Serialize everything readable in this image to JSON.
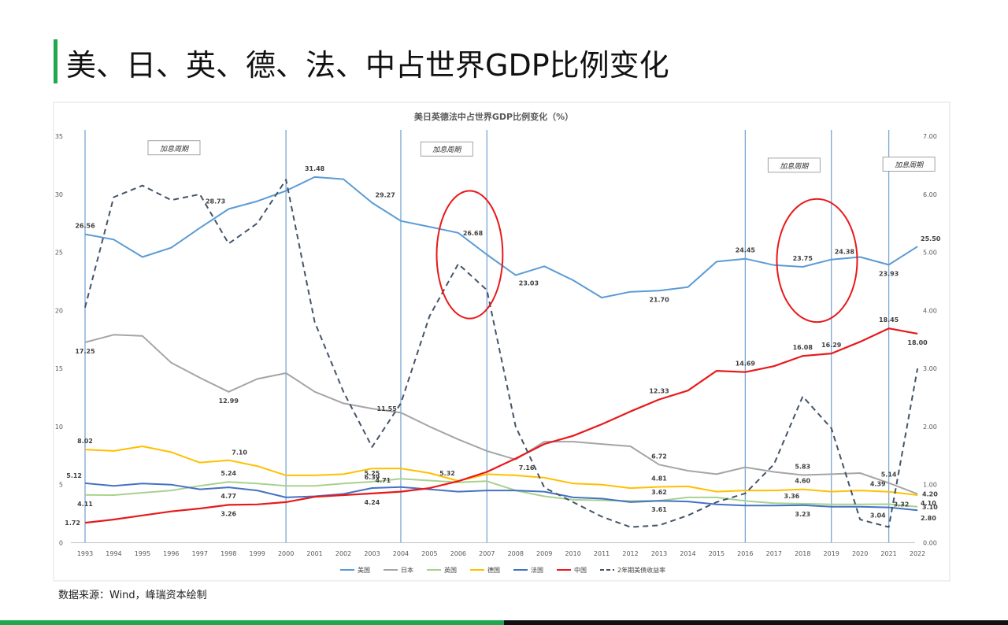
{
  "page": {
    "title": "美、日、英、德、法、中占世界GDP比例变化",
    "source": "数据来源：Wind，峰瑞资本绘制"
  },
  "colors": {
    "accent": "#1fa84f",
    "usa": "#5b9bd5",
    "japan": "#a5a5a5",
    "uk": "#a9d18e",
    "germany": "#ffc000",
    "france": "#4472c4",
    "china": "#e8191b",
    "yield": "#44546a",
    "cycle_line": "#7aa6d2",
    "circle": "#e8191b"
  },
  "chart_data": {
    "type": "line",
    "title": "美日英德法中占世界GDP比例变化（%）",
    "x": [
      1993,
      1994,
      1995,
      1996,
      1997,
      1998,
      1999,
      2000,
      2001,
      2002,
      2003,
      2004,
      2005,
      2006,
      2007,
      2008,
      2009,
      2010,
      2011,
      2012,
      2013,
      2014,
      2015,
      2016,
      2017,
      2018,
      2019,
      2020,
      2021,
      2022
    ],
    "y_left": {
      "min": 0,
      "max": 35,
      "ticks": [
        0,
        5,
        10,
        15,
        20,
        25,
        30,
        35
      ]
    },
    "y_right": {
      "min": 0,
      "max": 7,
      "ticks": [
        "0.00",
        "1.00",
        "2.00",
        "3.00",
        "4.00",
        "5.00",
        "6.00",
        "7.00"
      ]
    },
    "series": [
      {
        "name": "美国",
        "key": "usa",
        "axis": "left",
        "values": [
          26.56,
          26.1,
          24.6,
          25.4,
          27.1,
          28.73,
          29.4,
          30.3,
          31.48,
          31.3,
          29.27,
          27.7,
          27.2,
          26.68,
          24.8,
          23.03,
          23.8,
          22.6,
          21.1,
          21.6,
          21.7,
          22.0,
          24.2,
          24.45,
          23.9,
          23.75,
          24.38,
          24.6,
          23.93,
          25.5
        ]
      },
      {
        "name": "日本",
        "key": "japan",
        "axis": "left",
        "values": [
          17.25,
          17.9,
          17.8,
          15.5,
          14.2,
          12.99,
          14.1,
          14.6,
          13.0,
          12.0,
          11.55,
          11.2,
          10.0,
          8.9,
          7.9,
          7.16,
          8.7,
          8.7,
          8.5,
          8.3,
          6.72,
          6.2,
          5.9,
          6.5,
          6.1,
          5.83,
          5.9,
          6.0,
          5.14,
          4.2
        ]
      },
      {
        "name": "英国",
        "key": "uk",
        "axis": "left",
        "values": [
          4.11,
          4.1,
          4.3,
          4.5,
          4.9,
          5.24,
          5.1,
          4.9,
          4.9,
          5.1,
          5.25,
          5.5,
          5.35,
          5.2,
          5.3,
          4.5,
          4.0,
          3.7,
          3.65,
          3.6,
          3.62,
          3.9,
          3.9,
          3.6,
          3.4,
          3.36,
          3.3,
          3.3,
          3.32,
          3.1
        ]
      },
      {
        "name": "德国",
        "key": "germany",
        "axis": "left",
        "values": [
          8.02,
          7.9,
          8.3,
          7.8,
          6.9,
          7.1,
          6.6,
          5.8,
          5.8,
          5.9,
          6.39,
          6.4,
          6.0,
          5.32,
          5.9,
          5.8,
          5.6,
          5.1,
          5.0,
          4.7,
          4.81,
          4.85,
          4.4,
          4.5,
          4.5,
          4.6,
          4.4,
          4.5,
          4.39,
          4.1
        ]
      },
      {
        "name": "法国",
        "key": "france",
        "axis": "left",
        "values": [
          5.12,
          4.9,
          5.1,
          5.0,
          4.6,
          4.77,
          4.5,
          3.9,
          4.0,
          4.2,
          4.71,
          4.8,
          4.6,
          4.4,
          4.5,
          4.5,
          4.4,
          3.9,
          3.8,
          3.5,
          3.61,
          3.55,
          3.3,
          3.2,
          3.2,
          3.23,
          3.1,
          3.1,
          3.04,
          2.8
        ]
      },
      {
        "name": "中国",
        "key": "china",
        "axis": "left",
        "values": [
          1.72,
          2.0,
          2.35,
          2.7,
          2.95,
          3.26,
          3.3,
          3.5,
          3.95,
          4.1,
          4.24,
          4.4,
          4.7,
          5.3,
          6.1,
          7.25,
          8.5,
          9.2,
          10.2,
          11.3,
          12.33,
          13.1,
          14.8,
          14.69,
          15.2,
          16.08,
          16.29,
          17.3,
          18.45,
          18.0
        ]
      },
      {
        "name": "2年期美债收益率",
        "key": "yield",
        "axis": "right",
        "dashed": true,
        "values": [
          4.05,
          5.95,
          6.15,
          5.9,
          6.0,
          5.15,
          5.5,
          6.25,
          3.8,
          2.6,
          1.65,
          2.4,
          3.9,
          4.8,
          4.35,
          2.0,
          0.95,
          0.7,
          0.45,
          0.27,
          0.3,
          0.47,
          0.7,
          0.85,
          1.35,
          2.52,
          1.97,
          0.4,
          0.27,
          3.0
        ]
      }
    ],
    "data_labels": [
      {
        "series": "usa",
        "year": 1993,
        "text": "26.56",
        "pos": "above"
      },
      {
        "series": "usa",
        "year": 1998,
        "text": "28.73",
        "pos": "above-left"
      },
      {
        "series": "usa",
        "year": 2001,
        "text": "31.48",
        "pos": "above"
      },
      {
        "series": "usa",
        "year": 2003,
        "text": "29.27",
        "pos": "above-right"
      },
      {
        "series": "usa",
        "year": 2006,
        "text": "26.68",
        "pos": "right"
      },
      {
        "series": "usa",
        "year": 2008,
        "text": "23.03",
        "pos": "below-right"
      },
      {
        "series": "usa",
        "year": 2013,
        "text": "21.70",
        "pos": "below"
      },
      {
        "series": "usa",
        "year": 2016,
        "text": "24.45",
        "pos": "above"
      },
      {
        "series": "usa",
        "year": 2018,
        "text": "23.75",
        "pos": "above"
      },
      {
        "series": "usa",
        "year": 2019,
        "text": "24.38",
        "pos": "above-right"
      },
      {
        "series": "usa",
        "year": 2021,
        "text": "23.93",
        "pos": "below"
      },
      {
        "series": "usa",
        "year": 2022,
        "text": "25.50",
        "pos": "above-right"
      },
      {
        "series": "japan",
        "year": 1993,
        "text": "17.25",
        "pos": "below"
      },
      {
        "series": "japan",
        "year": 1998,
        "text": "12.99",
        "pos": "below"
      },
      {
        "series": "japan",
        "year": 2003,
        "text": "11.55",
        "pos": "right"
      },
      {
        "series": "japan",
        "year": 2008,
        "text": "7.16",
        "pos": "below-right"
      },
      {
        "series": "japan",
        "year": 2013,
        "text": "6.72",
        "pos": "above"
      },
      {
        "series": "japan",
        "year": 2018,
        "text": "5.83",
        "pos": "above"
      },
      {
        "series": "japan",
        "year": 2021,
        "text": "5.14",
        "pos": "above"
      },
      {
        "series": "japan",
        "year": 2022,
        "text": "4.20",
        "pos": "right"
      },
      {
        "series": "uk",
        "year": 1993,
        "text": "4.11",
        "pos": "below"
      },
      {
        "series": "uk",
        "year": 1998,
        "text": "5.24",
        "pos": "above"
      },
      {
        "series": "uk",
        "year": 2003,
        "text": "5.25",
        "pos": "above"
      },
      {
        "series": "uk",
        "year": 2013,
        "text": "3.62",
        "pos": "above"
      },
      {
        "series": "uk",
        "year": 2018,
        "text": "3.36",
        "pos": "above-left"
      },
      {
        "series": "uk",
        "year": 2021,
        "text": "3.32",
        "pos": "right"
      },
      {
        "series": "uk",
        "year": 2022,
        "text": "3.10",
        "pos": "right"
      },
      {
        "series": "germany",
        "year": 1993,
        "text": "8.02",
        "pos": "above"
      },
      {
        "series": "germany",
        "year": 1998,
        "text": "7.10",
        "pos": "above-right"
      },
      {
        "series": "germany",
        "year": 2003,
        "text": "6.39",
        "pos": "below"
      },
      {
        "series": "germany",
        "year": 2006,
        "text": "5.32",
        "pos": "above-left"
      },
      {
        "series": "germany",
        "year": 2013,
        "text": "4.81",
        "pos": "above"
      },
      {
        "series": "germany",
        "year": 2018,
        "text": "4.60",
        "pos": "above"
      },
      {
        "series": "germany",
        "year": 2021,
        "text": "4.39",
        "pos": "above-left"
      },
      {
        "series": "germany",
        "year": 2022,
        "text": "4.10",
        "pos": "below-right"
      },
      {
        "series": "france",
        "year": 1993,
        "text": "5.12",
        "pos": "above-left"
      },
      {
        "series": "france",
        "year": 1998,
        "text": "4.77",
        "pos": "below"
      },
      {
        "series": "france",
        "year": 2003,
        "text": "4.71",
        "pos": "above-right"
      },
      {
        "series": "france",
        "year": 2013,
        "text": "3.61",
        "pos": "below"
      },
      {
        "series": "france",
        "year": 2018,
        "text": "3.23",
        "pos": "below"
      },
      {
        "series": "france",
        "year": 2021,
        "text": "3.04",
        "pos": "below-left"
      },
      {
        "series": "france",
        "year": 2022,
        "text": "2.80",
        "pos": "below-right"
      },
      {
        "series": "china",
        "year": 1993,
        "text": "1.72",
        "pos": "left"
      },
      {
        "series": "china",
        "year": 1998,
        "text": "3.26",
        "pos": "below"
      },
      {
        "series": "china",
        "year": 2003,
        "text": "4.24",
        "pos": "below"
      },
      {
        "series": "china",
        "year": 2013,
        "text": "12.33",
        "pos": "above"
      },
      {
        "series": "china",
        "year": 2016,
        "text": "14.69",
        "pos": "above"
      },
      {
        "series": "china",
        "year": 2018,
        "text": "16.08",
        "pos": "above"
      },
      {
        "series": "china",
        "year": 2019,
        "text": "16.29",
        "pos": "above"
      },
      {
        "series": "china",
        "year": 2021,
        "text": "18.45",
        "pos": "above"
      },
      {
        "series": "china",
        "year": 2022,
        "text": "18.00",
        "pos": "below"
      }
    ],
    "cycle_lines_years": [
      1993,
      2000,
      2004,
      2007,
      2016,
      2019,
      2021
    ],
    "annotations": [
      {
        "text": "加息周期",
        "year": 1996.1,
        "value": 34.0
      },
      {
        "text": "加息周期",
        "year": 2005.6,
        "value": 33.9
      },
      {
        "text": "加息周期",
        "year": 2017.7,
        "value": 32.5
      },
      {
        "text": "加息周期",
        "year": 2021.7,
        "value": 32.6
      }
    ],
    "highlight_circles": [
      {
        "year": 2006.4,
        "value": 24.8,
        "rx_years": 2.3,
        "ry_value": 5.5
      },
      {
        "year": 2018.5,
        "value": 24.3,
        "rx_years": 2.8,
        "ry_value": 5.3
      }
    ],
    "legend_placement": "bottom",
    "grid": false
  }
}
